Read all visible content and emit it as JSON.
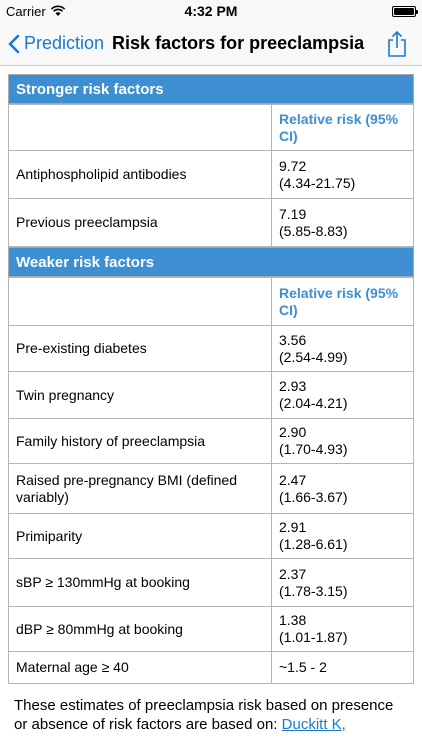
{
  "status_bar": {
    "carrier": "Carrier",
    "time": "4:32 PM",
    "battery_level": 1.0
  },
  "nav": {
    "back_label": "Prediction",
    "title": "Risk factors for preeclampsia"
  },
  "stronger": {
    "header": "Stronger risk factors",
    "column_header": "Relative risk (95% CI)",
    "rows": [
      {
        "factor": "Antiphospholipid antibodies",
        "rr": "9.72",
        "ci": "(4.34-21.75)"
      },
      {
        "factor": "Previous preeclampsia",
        "rr": "7.19",
        "ci": "(5.85-8.83)"
      }
    ]
  },
  "weaker": {
    "header": "Weaker risk factors",
    "column_header": "Relative risk (95% CI)",
    "rows": [
      {
        "factor": "Pre-existing diabetes",
        "rr": "3.56",
        "ci": "(2.54-4.99)"
      },
      {
        "factor": "Twin pregnancy",
        "rr": "2.93",
        "ci": "(2.04-4.21)"
      },
      {
        "factor": "Family history of preeclampsia",
        "rr": "2.90",
        "ci": "(1.70-4.93)"
      },
      {
        "factor": "Raised pre-pregnancy BMI (defined variably)",
        "rr": "2.47",
        "ci": "(1.66-3.67)"
      },
      {
        "factor": "Primiparity",
        "rr": "2.91",
        "ci": "(1.28-6.61)"
      },
      {
        "factor": "sBP ≥ 130mmHg at booking",
        "rr": "2.37",
        "ci": "(1.78-3.15)"
      },
      {
        "factor": "dBP ≥ 80mmHg at booking",
        "rr": "1.38",
        "ci": "(1.01-1.87)"
      },
      {
        "factor": "Maternal age ≥ 40",
        "rr": "~1.5 - 2",
        "ci": ""
      }
    ]
  },
  "footer": {
    "text": "These estimates of preeclampsia risk based on presence or absence of risk factors are based on: ",
    "link": "Duckitt K,"
  }
}
